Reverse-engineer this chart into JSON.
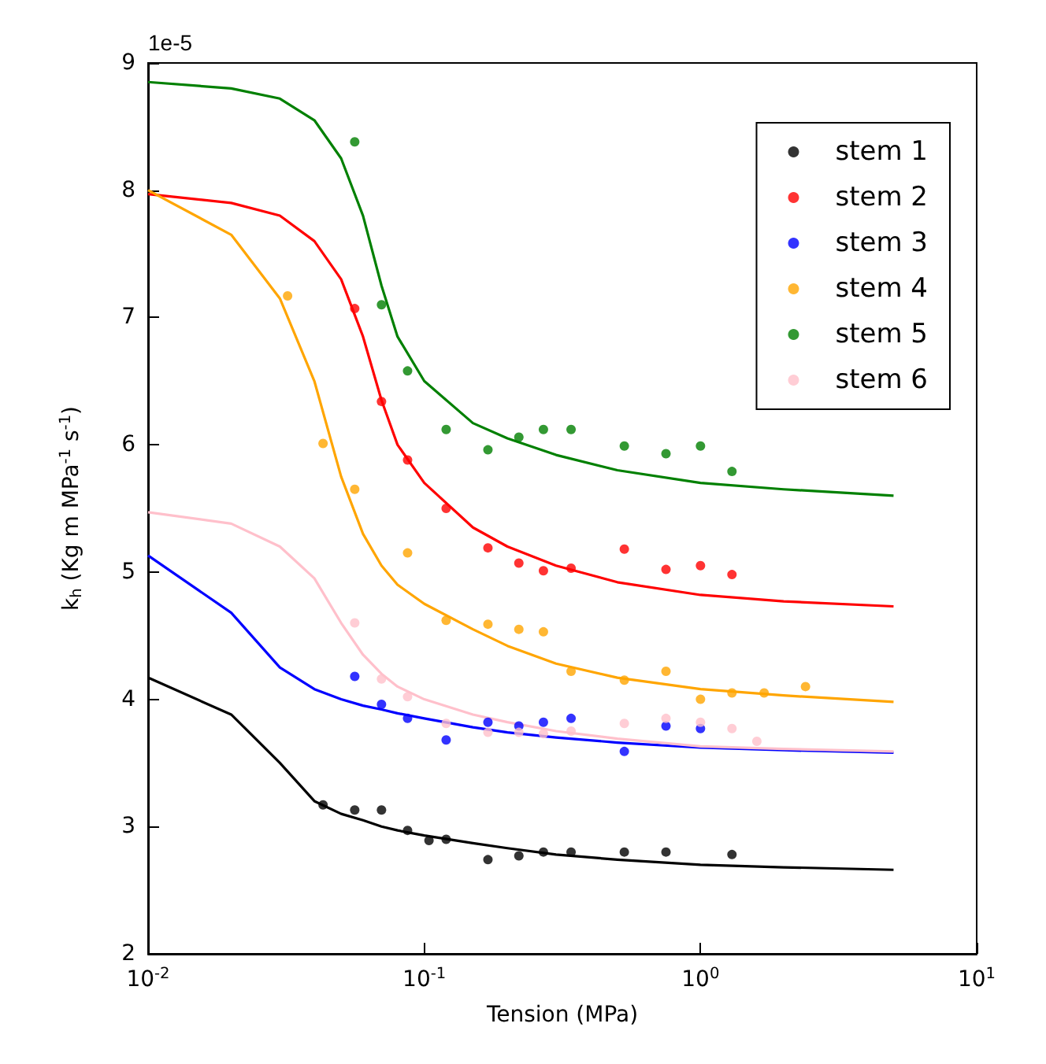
{
  "chart_data": {
    "type": "scatter",
    "xlabel": "Tension (MPa)",
    "ylabel": "k$_{h}$ (Kg m MPa$^{-1}$ s$^{-1}$)",
    "annotations": [
      "1e-5"
    ],
    "log": "x",
    "xlim": [
      0.01,
      10
    ],
    "ylim": [
      2,
      9
    ],
    "xticks": [
      {
        "value": 0.01,
        "label": "10$^{-2}$"
      },
      {
        "value": 0.1,
        "label": "10$^{-1}$"
      },
      {
        "value": 1,
        "label": "10$^{0}$"
      },
      {
        "value": 10,
        "label": "10$^{1}$"
      }
    ],
    "yticks": [
      2,
      3,
      4,
      5,
      6,
      7,
      8,
      9
    ],
    "legend": "top right",
    "marker": "circle",
    "grid": false,
    "series": [
      {
        "name": "stem 1",
        "color": "#000000",
        "x": [
          0.043,
          0.056,
          0.07,
          0.087,
          0.104,
          0.12,
          0.17,
          0.22,
          0.27,
          0.34,
          0.53,
          0.75,
          1.3
        ],
        "values": [
          3.17,
          3.13,
          3.13,
          2.97,
          2.89,
          2.9,
          2.74,
          2.77,
          2.8,
          2.8,
          2.8,
          2.8,
          2.78
        ]
      },
      {
        "name": "stem 2",
        "color": "#ff0000",
        "x": [
          0.056,
          0.07,
          0.087,
          0.12,
          0.17,
          0.22,
          0.27,
          0.34,
          0.53,
          0.75,
          1.0,
          1.3
        ],
        "values": [
          7.07,
          6.34,
          5.88,
          5.5,
          5.19,
          5.07,
          5.01,
          5.03,
          5.18,
          5.02,
          5.05,
          4.98
        ]
      },
      {
        "name": "stem 3",
        "color": "#0000ff",
        "x": [
          0.056,
          0.07,
          0.087,
          0.12,
          0.17,
          0.22,
          0.27,
          0.34,
          0.53,
          0.75,
          1.0
        ],
        "values": [
          4.18,
          3.96,
          3.85,
          3.68,
          3.82,
          3.79,
          3.82,
          3.85,
          3.59,
          3.79,
          3.77
        ]
      },
      {
        "name": "stem 4",
        "color": "#ffa500",
        "x": [
          0.032,
          0.043,
          0.056,
          0.087,
          0.12,
          0.17,
          0.22,
          0.27,
          0.34,
          0.53,
          0.75,
          1.0,
          1.3,
          1.7,
          2.4
        ],
        "values": [
          7.17,
          6.01,
          5.65,
          5.15,
          4.62,
          4.59,
          4.55,
          4.53,
          4.22,
          4.15,
          4.22,
          4.0,
          4.05,
          4.05,
          4.1
        ]
      },
      {
        "name": "stem 5",
        "color": "#008000",
        "x": [
          0.056,
          0.07,
          0.087,
          0.12,
          0.17,
          0.22,
          0.27,
          0.34,
          0.53,
          0.75,
          1.0,
          1.3
        ],
        "values": [
          8.38,
          7.1,
          6.58,
          6.12,
          5.96,
          6.06,
          6.12,
          6.12,
          5.99,
          5.93,
          5.99,
          5.79
        ]
      },
      {
        "name": "stem 6",
        "color": "#ffc0cb",
        "x": [
          0.056,
          0.07,
          0.087,
          0.12,
          0.17,
          0.22,
          0.27,
          0.34,
          0.53,
          0.75,
          1.0,
          1.3,
          1.6
        ],
        "values": [
          4.6,
          4.16,
          4.02,
          3.81,
          3.74,
          3.74,
          3.73,
          3.75,
          3.81,
          3.85,
          3.82,
          3.77,
          3.67
        ]
      },
      {
        "type": "line",
        "color": "#000000",
        "marker": "none",
        "x": [
          0.01,
          0.02,
          0.03,
          0.04,
          0.05,
          0.06,
          0.07,
          0.08,
          0.1,
          0.15,
          0.2,
          0.3,
          0.5,
          1,
          2,
          5
        ],
        "values": [
          4.17,
          3.88,
          3.5,
          3.2,
          3.1,
          3.05,
          3.0,
          2.97,
          2.93,
          2.87,
          2.83,
          2.78,
          2.74,
          2.7,
          2.68,
          2.66
        ]
      },
      {
        "type": "line",
        "color": "#ff0000",
        "marker": "none",
        "x": [
          0.01,
          0.02,
          0.03,
          0.04,
          0.05,
          0.06,
          0.07,
          0.08,
          0.1,
          0.15,
          0.2,
          0.3,
          0.5,
          1,
          2,
          5
        ],
        "values": [
          7.97,
          7.9,
          7.8,
          7.6,
          7.3,
          6.85,
          6.35,
          6.0,
          5.7,
          5.35,
          5.2,
          5.05,
          4.92,
          4.82,
          4.77,
          4.73
        ]
      },
      {
        "type": "line",
        "color": "#0000ff",
        "marker": "none",
        "x": [
          0.01,
          0.02,
          0.03,
          0.04,
          0.05,
          0.06,
          0.07,
          0.08,
          0.1,
          0.15,
          0.2,
          0.3,
          0.5,
          1,
          2,
          5
        ],
        "values": [
          5.13,
          4.68,
          4.25,
          4.08,
          4.0,
          3.95,
          3.92,
          3.89,
          3.85,
          3.78,
          3.74,
          3.7,
          3.66,
          3.62,
          3.6,
          3.58
        ]
      },
      {
        "type": "line",
        "color": "#ffa500",
        "marker": "none",
        "x": [
          0.01,
          0.02,
          0.03,
          0.04,
          0.05,
          0.06,
          0.07,
          0.08,
          0.1,
          0.15,
          0.2,
          0.3,
          0.5,
          1,
          2,
          5
        ],
        "values": [
          8.0,
          7.65,
          7.15,
          6.5,
          5.75,
          5.3,
          5.05,
          4.9,
          4.75,
          4.55,
          4.42,
          4.28,
          4.17,
          4.08,
          4.03,
          3.98
        ]
      },
      {
        "type": "line",
        "color": "#008000",
        "marker": "none",
        "x": [
          0.01,
          0.02,
          0.03,
          0.04,
          0.05,
          0.06,
          0.07,
          0.08,
          0.1,
          0.15,
          0.2,
          0.3,
          0.5,
          1,
          2,
          5
        ],
        "values": [
          8.85,
          8.8,
          8.72,
          8.55,
          8.25,
          7.8,
          7.25,
          6.85,
          6.5,
          6.17,
          6.05,
          5.92,
          5.8,
          5.7,
          5.65,
          5.6
        ]
      },
      {
        "type": "line",
        "color": "#ffc0cb",
        "marker": "none",
        "x": [
          0.01,
          0.02,
          0.03,
          0.04,
          0.05,
          0.06,
          0.07,
          0.08,
          0.1,
          0.15,
          0.2,
          0.3,
          0.5,
          1,
          2,
          5
        ],
        "values": [
          5.47,
          5.38,
          5.2,
          4.95,
          4.6,
          4.35,
          4.2,
          4.1,
          4.0,
          3.88,
          3.82,
          3.75,
          3.69,
          3.63,
          3.61,
          3.59
        ]
      }
    ]
  }
}
